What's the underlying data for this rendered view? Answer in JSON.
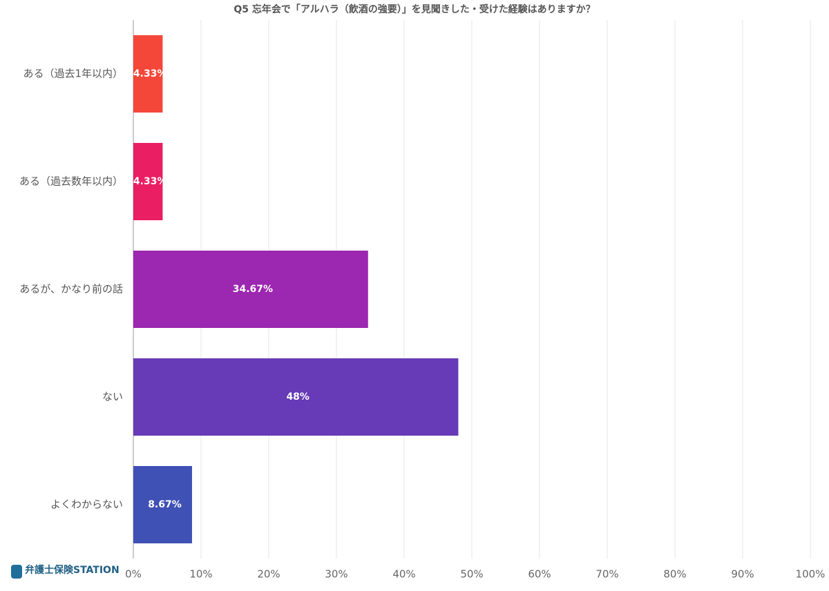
{
  "chart_data": {
    "type": "hbar",
    "title": "Q5 忘年会で「アルハラ（飲酒の強要）」を見聞きした・受けた経験はありますか？",
    "categories": [
      "ある（過去1年以内）",
      "ある（過去数年以内）",
      "あるが、かなり前の話",
      "ない",
      "よくわからない"
    ],
    "values": [
      4.33,
      4.33,
      34.67,
      48,
      8.67
    ],
    "value_labels": [
      "4.33%",
      "4.33%",
      "34.67%",
      "48%",
      "8.67%"
    ],
    "colors": [
      "#f4473a",
      "#e91e63",
      "#9c27b0",
      "#673ab7",
      "#3f51b5"
    ],
    "xlim": [
      0,
      100
    ],
    "xticks": [
      {
        "value": 0,
        "label": "0%"
      },
      {
        "value": 10,
        "label": "10%"
      },
      {
        "value": 20,
        "label": "20%"
      },
      {
        "value": 30,
        "label": "30%"
      },
      {
        "value": 40,
        "label": "40%"
      },
      {
        "value": 50,
        "label": "50%"
      },
      {
        "value": 60,
        "label": "60%"
      },
      {
        "value": 70,
        "label": "70%"
      },
      {
        "value": 80,
        "label": "80%"
      },
      {
        "value": 90,
        "label": "90%"
      },
      {
        "value": 100,
        "label": "100%"
      }
    ],
    "grid": true
  },
  "logo": {
    "name": "弁護士保険STATION"
  }
}
